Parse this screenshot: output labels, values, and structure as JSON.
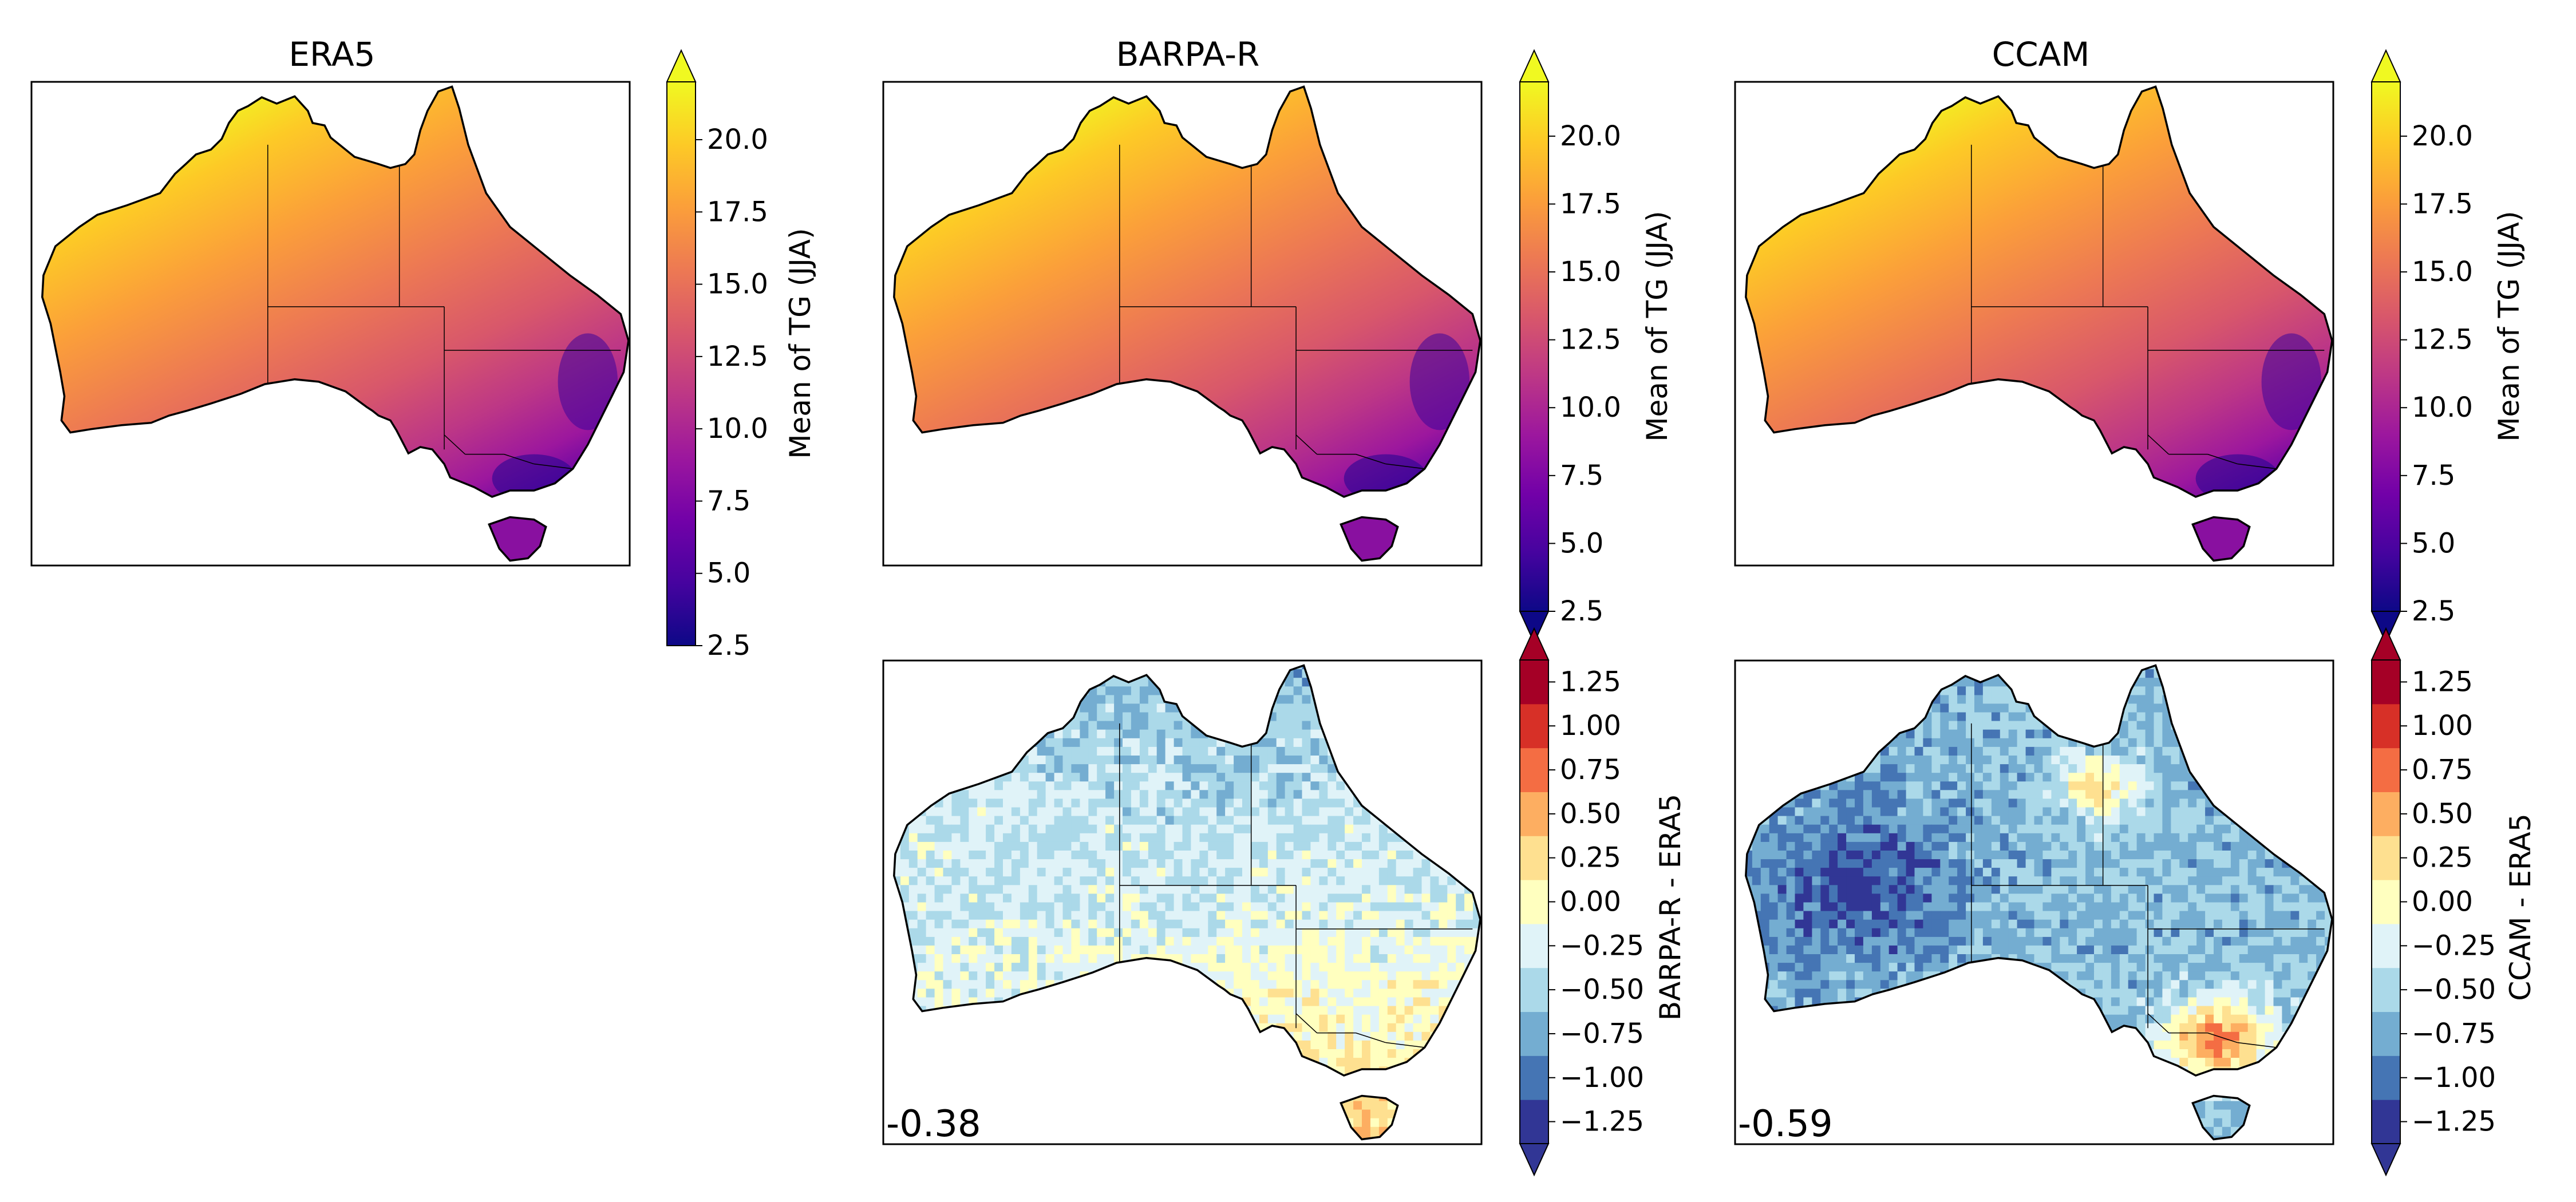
{
  "chart_data": [
    {
      "type": "heatmap",
      "title": "ERA5",
      "colorbar": {
        "label": "Mean of TG (JJA)",
        "colormap": "plasma",
        "range": [
          2.5,
          22.0
        ],
        "ticks": [
          "2.5",
          "5.0",
          "7.5",
          "10.0",
          "12.5",
          "15.0",
          "17.5",
          "20.0"
        ],
        "extend": "max"
      },
      "map": "Australia",
      "field_pattern": "warmest (~20) in the tropical north, decreasing southward to ~3-8 in the south-east highlands and Tasmania"
    },
    {
      "type": "heatmap",
      "title": "BARPA-R",
      "colorbar": {
        "label": "Mean of TG (JJA)",
        "colormap": "plasma",
        "range": [
          2.5,
          22.0
        ],
        "ticks": [
          "2.5",
          "5.0",
          "7.5",
          "10.0",
          "12.5",
          "15.0",
          "17.5",
          "20.0"
        ],
        "extend": "both"
      },
      "map": "Australia"
    },
    {
      "type": "heatmap",
      "title": "CCAM",
      "colorbar": {
        "label": "Mean of TG (JJA)",
        "colormap": "plasma",
        "range": [
          2.5,
          22.0
        ],
        "ticks": [
          "2.5",
          "5.0",
          "7.5",
          "10.0",
          "12.5",
          "15.0",
          "17.5",
          "20.0"
        ],
        "extend": "both"
      },
      "map": "Australia"
    },
    {
      "type": "heatmap",
      "title": "",
      "colorbar": {
        "label": "BARPA-R - ERA5",
        "colormap": "RdYlBu_r",
        "boundaries": [
          -1.375,
          -1.125,
          -0.875,
          -0.625,
          -0.375,
          -0.125,
          0.125,
          0.375,
          0.625,
          0.875,
          1.125,
          1.375
        ],
        "ticks": [
          "1.25",
          "1.00",
          "0.75",
          "0.50",
          "0.25",
          "0.00",
          "−0.25",
          "−0.50",
          "−0.75",
          "−1.00",
          "−1.25"
        ],
        "extend": "both"
      },
      "map": "Australia",
      "annotation": "-0.38"
    },
    {
      "type": "heatmap",
      "title": "",
      "colorbar": {
        "label": "CCAM - ERA5",
        "colormap": "RdYlBu_r",
        "boundaries": [
          -1.375,
          -1.125,
          -0.875,
          -0.625,
          -0.375,
          -0.125,
          0.125,
          0.375,
          0.625,
          0.875,
          1.125,
          1.375
        ],
        "ticks": [
          "1.25",
          "1.00",
          "0.75",
          "0.50",
          "0.25",
          "0.00",
          "−0.25",
          "−0.50",
          "−0.75",
          "−1.00",
          "−1.25"
        ],
        "extend": "both"
      },
      "map": "Australia",
      "annotation": "-0.59"
    }
  ],
  "colors": {
    "plasma": [
      "#0d0887",
      "#46039f",
      "#7201a8",
      "#9c179e",
      "#bd3786",
      "#d8576b",
      "#ed7953",
      "#fb9f3a",
      "#fdca26",
      "#f0f921"
    ],
    "diverging": [
      "#313695",
      "#4575b4",
      "#74add1",
      "#abd9e9",
      "#e0f3f8",
      "#ffffbf",
      "#fee090",
      "#fdae61",
      "#f46d43",
      "#d73027",
      "#a50026"
    ]
  }
}
